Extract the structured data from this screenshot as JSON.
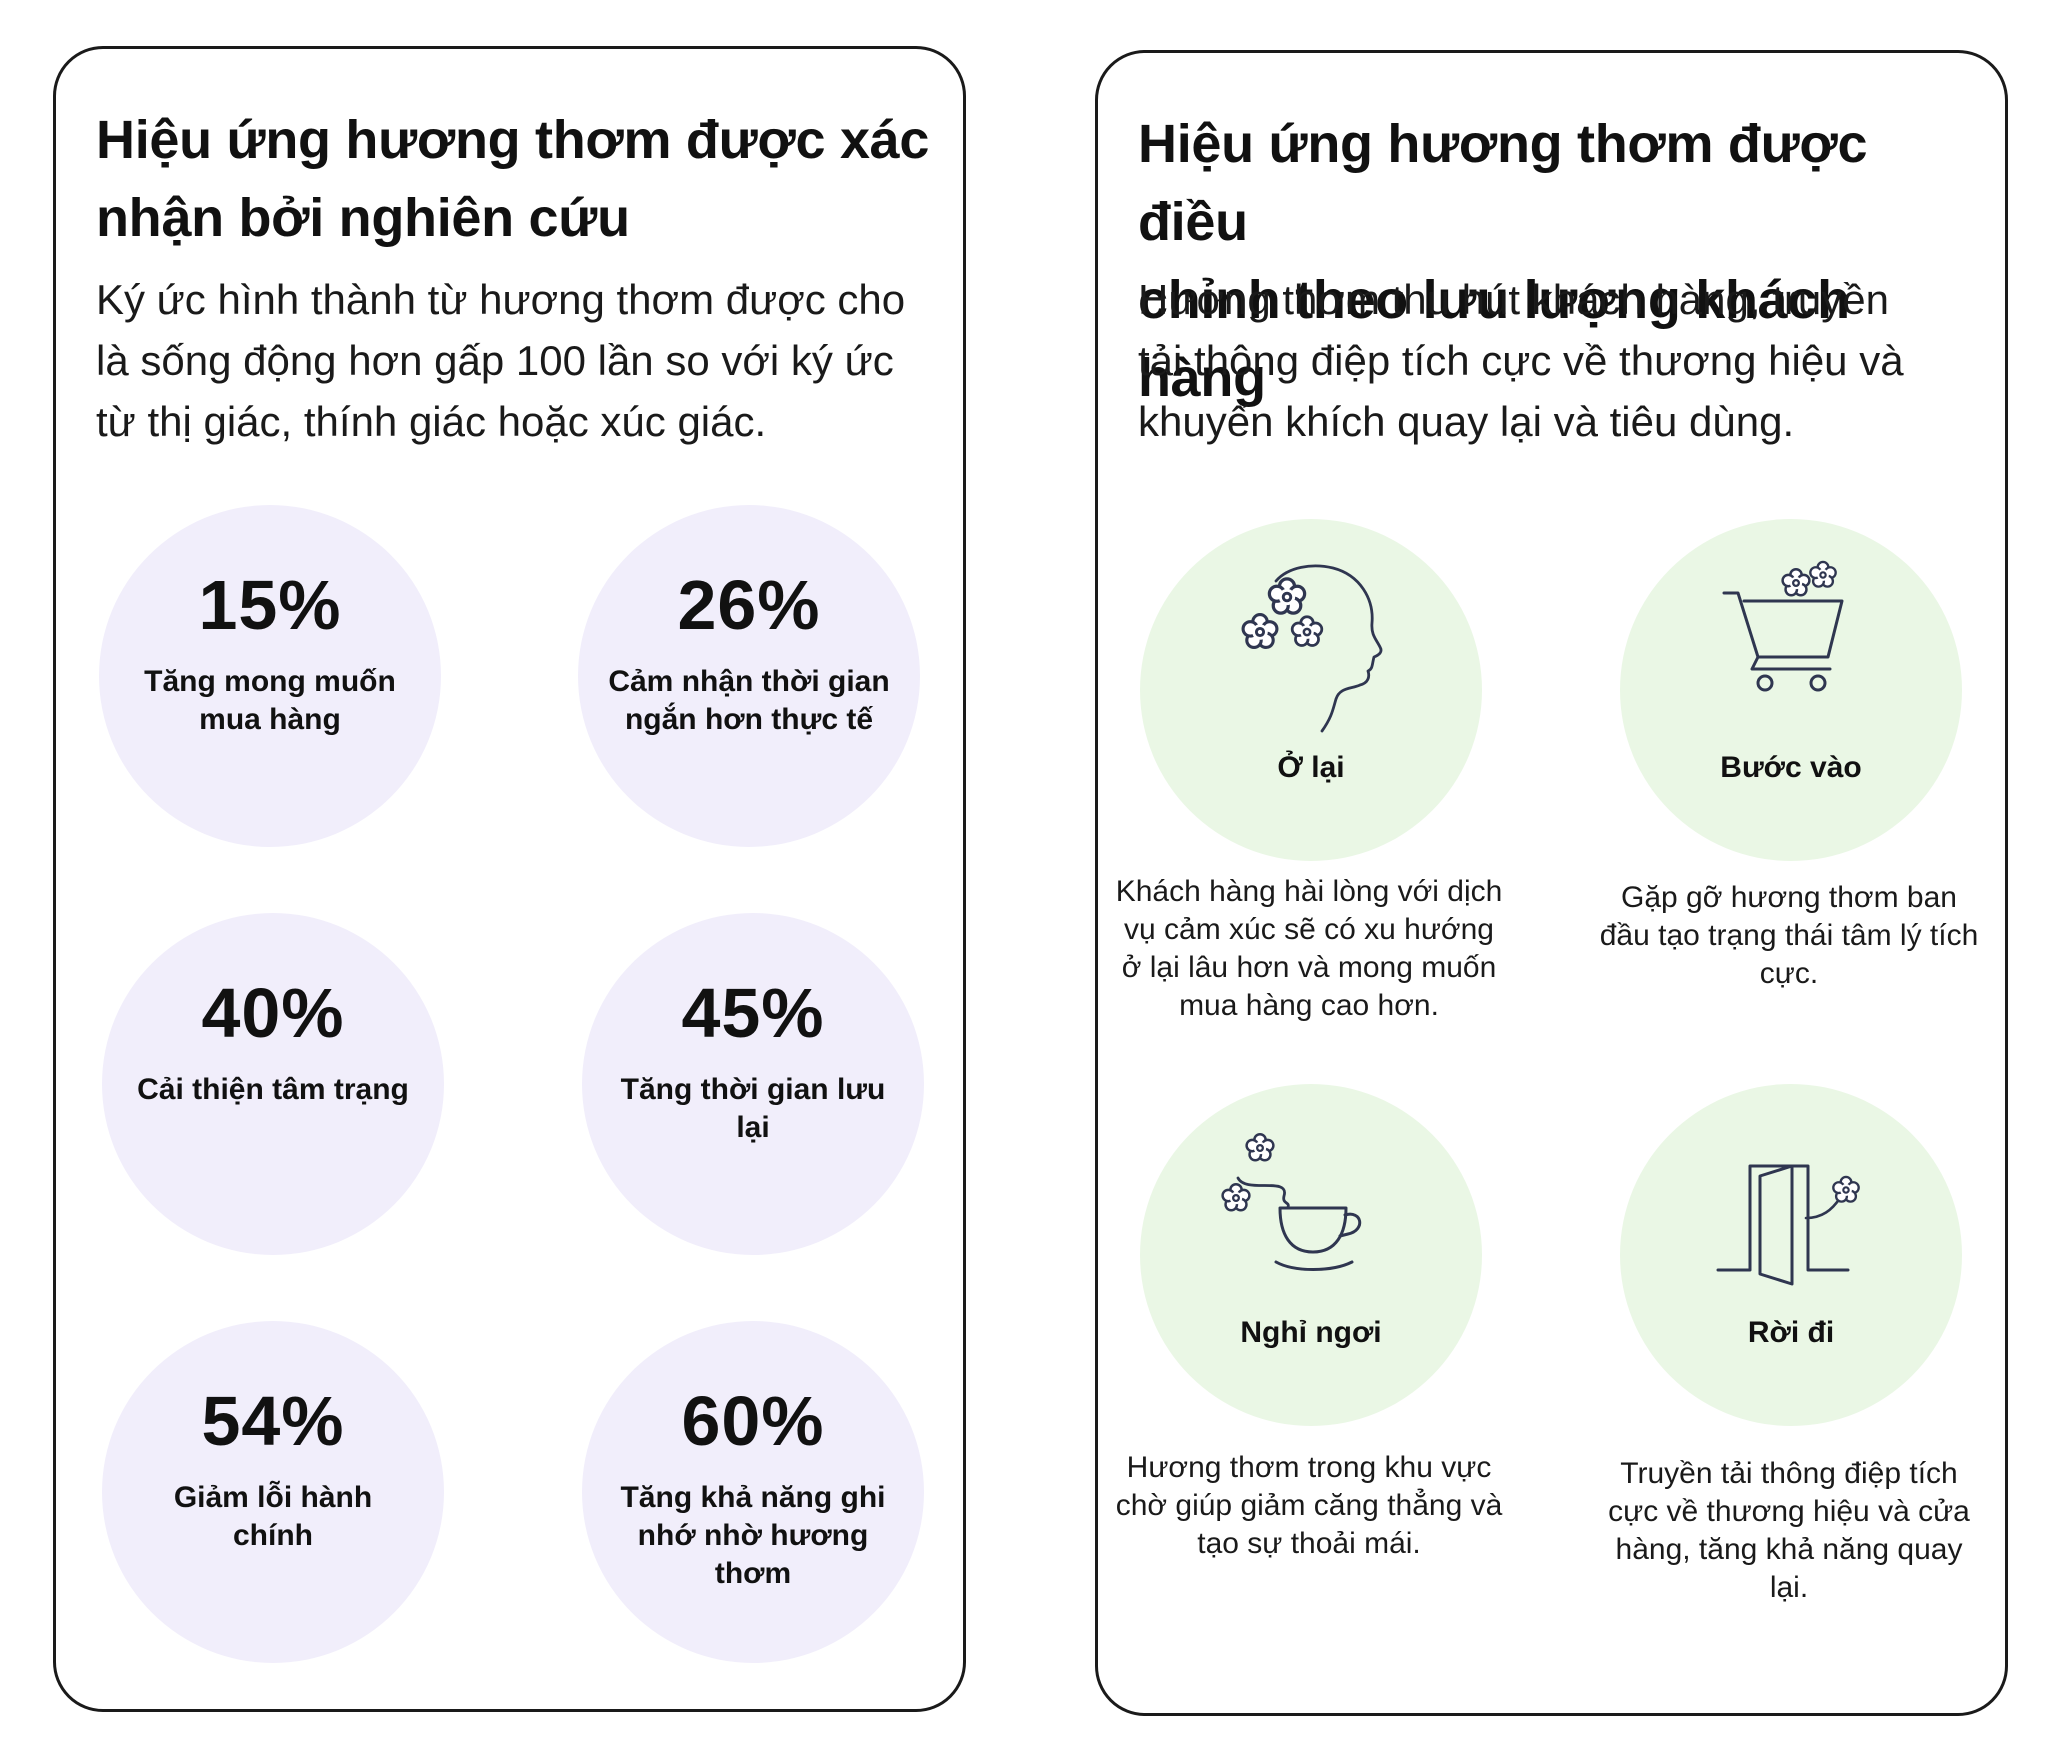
{
  "colors": {
    "card_border": "#1a1a1a",
    "stat_circle": "#f1eefb",
    "feature_circle": "#eaf7e5",
    "icon_stroke": "#2f3650",
    "text": "#111111"
  },
  "left_card": {
    "title_line1": "Hiệu ứng hương thơm được xác",
    "title_line2": "nhận bởi nghiên cứu",
    "description_line1": "Ký ức hình thành từ hương thơm được cho",
    "description_line2": "là sống động hơn gấp 100 lần so với ký ức",
    "description_line3": "từ thị giác, thính giác hoặc xúc giác.",
    "stats": [
      {
        "value": "15%",
        "label": "Tăng mong muốn mua hàng"
      },
      {
        "value": "26%",
        "label": "Cảm nhận thời gian ngắn hơn thực tế"
      },
      {
        "value": "40%",
        "label": "Cải thiện tâm trạng"
      },
      {
        "value": "45%",
        "label": "Tăng thời gian lưu lại"
      },
      {
        "value": "54%",
        "label": "Giảm lỗi hành chính"
      },
      {
        "value": "60%",
        "label": "Tăng khả năng ghi nhớ nhờ hương thơm"
      }
    ]
  },
  "right_card": {
    "title_line1": "Hiệu ứng hương thơm được điều",
    "title_line2": "chỉnh theo lưu lượng khách hàng",
    "description_line1": "Hương thơm thu hút khách hàng, truyền",
    "description_line2": "tải thông điệp tích cực về thương hiệu và",
    "description_line3": "khuyến khích quay lại và tiêu dùng.",
    "features": [
      {
        "label": "Ở lại",
        "icon": "head-flowers-icon",
        "description": "Khách hàng hài lòng với dịch vụ cảm xúc sẽ có xu hướng ở lại lâu hơn và mong muốn mua hàng cao hơn."
      },
      {
        "label": "Bước vào",
        "icon": "shopping-cart-flowers-icon",
        "description": "Gặp gỡ hương thơm ban đầu tạo trạng thái tâm lý tích cực."
      },
      {
        "label": "Nghỉ ngơi",
        "icon": "coffee-cup-icon",
        "description": "Hương thơm trong khu vực chờ giúp giảm căng thẳng và tạo sự thoải mái."
      },
      {
        "label": "Rời đi",
        "icon": "open-door-icon",
        "description": "Truyền tải thông điệp tích cực về thương hiệu và cửa hàng, tăng khả năng quay lại."
      }
    ]
  }
}
